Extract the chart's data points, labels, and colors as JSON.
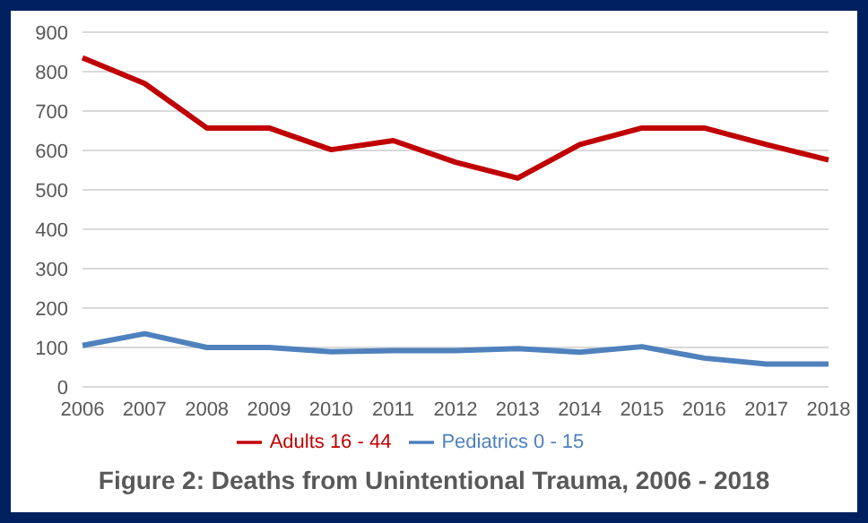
{
  "chart_data": {
    "type": "line",
    "title": "Figure 2: Deaths from Unintentional Trauma, 2006  - 2018",
    "categories": [
      "2006",
      "2007",
      "2008",
      "2009",
      "2010",
      "2011",
      "2012",
      "2013",
      "2014",
      "2015",
      "2016",
      "2017",
      "2018"
    ],
    "series": [
      {
        "name": "Pediatrics 0 - 15",
        "color": "#4f81bd",
        "values": [
          105,
          135,
          100,
          100,
          89,
          92,
          92,
          97,
          88,
          102,
          73,
          58,
          58
        ]
      },
      {
        "name": "Adults 16 - 44",
        "color": "#c00000",
        "values": [
          835,
          770,
          657,
          657,
          602,
          625,
          570,
          530,
          615,
          657,
          657,
          615,
          576
        ]
      }
    ],
    "ylim": [
      0,
      900
    ],
    "yticks": [
      0,
      100,
      200,
      300,
      400,
      500,
      600,
      700,
      800,
      900
    ],
    "grid": "y",
    "legend": "bottom",
    "marker": "none",
    "line_style": "solid"
  }
}
